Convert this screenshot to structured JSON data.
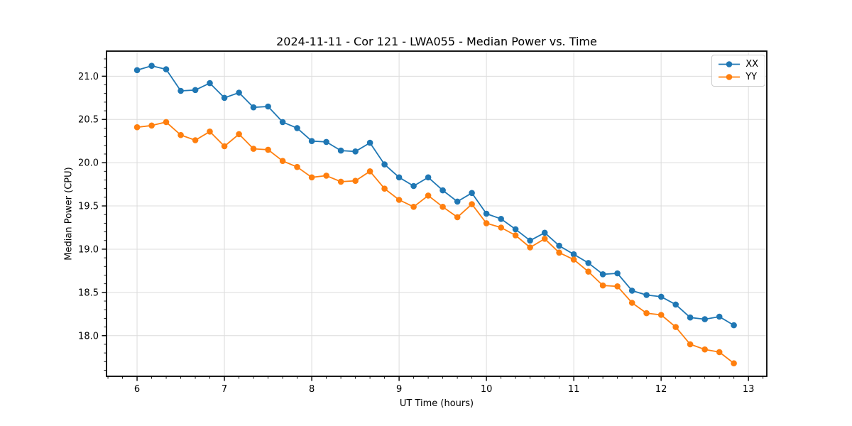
{
  "figure": {
    "title": "2024-11-11 - Cor 121 - LWA055 - Median Power vs. Time"
  },
  "chart_data": {
    "type": "line",
    "title": "2024-11-11 - Cor 121 - LWA055 - Median Power vs. Time",
    "xlabel": "UT Time (hours)",
    "ylabel": "Median Power (CPU)",
    "xlim": [
      5.65,
      13.21
    ],
    "ylim": [
      17.53,
      21.29
    ],
    "x_ticks": [
      6,
      7,
      8,
      9,
      10,
      11,
      12,
      13
    ],
    "y_ticks": [
      18.0,
      18.5,
      19.0,
      19.5,
      20.0,
      20.5,
      21.0
    ],
    "x_minor_divisions_per_major": 6,
    "y_minor_divisions_per_major": 5,
    "grid": true,
    "legend_position": "upper right",
    "marker": "circle",
    "x": [
      6.0,
      6.167,
      6.333,
      6.5,
      6.667,
      6.833,
      7.0,
      7.167,
      7.333,
      7.5,
      7.667,
      7.833,
      8.0,
      8.167,
      8.333,
      8.5,
      8.667,
      8.833,
      9.0,
      9.167,
      9.333,
      9.5,
      9.667,
      9.833,
      10.0,
      10.167,
      10.333,
      10.5,
      10.667,
      10.833,
      11.0,
      11.167,
      11.333,
      11.5,
      11.667,
      11.833,
      12.0,
      12.167,
      12.333,
      12.5,
      12.667,
      12.833
    ],
    "series": [
      {
        "name": "XX",
        "color": "#1f77b4",
        "values": [
          21.07,
          21.12,
          21.08,
          20.83,
          20.84,
          20.92,
          20.75,
          20.81,
          20.64,
          20.65,
          20.47,
          20.4,
          20.25,
          20.24,
          20.14,
          20.13,
          20.23,
          19.98,
          19.83,
          19.73,
          19.83,
          19.68,
          19.55,
          19.65,
          19.41,
          19.35,
          19.23,
          19.1,
          19.19,
          19.04,
          18.94,
          18.84,
          18.71,
          18.72,
          18.52,
          18.47,
          18.45,
          18.36,
          18.21,
          18.19,
          18.22,
          18.12
        ]
      },
      {
        "name": "YY",
        "color": "#ff7f0e",
        "values": [
          20.41,
          20.43,
          20.47,
          20.32,
          20.26,
          20.36,
          20.19,
          20.33,
          20.16,
          20.15,
          20.02,
          19.95,
          19.83,
          19.85,
          19.78,
          19.79,
          19.9,
          19.7,
          19.57,
          19.49,
          19.62,
          19.49,
          19.37,
          19.52,
          19.3,
          19.25,
          19.16,
          19.02,
          19.12,
          18.96,
          18.88,
          18.74,
          18.58,
          18.57,
          18.38,
          18.26,
          18.24,
          18.1,
          17.9,
          17.84,
          17.81,
          17.68
        ]
      }
    ],
    "style": {
      "grid_color": "#dcdcdc",
      "spine_color": "#000000",
      "background": "#ffffff"
    }
  }
}
